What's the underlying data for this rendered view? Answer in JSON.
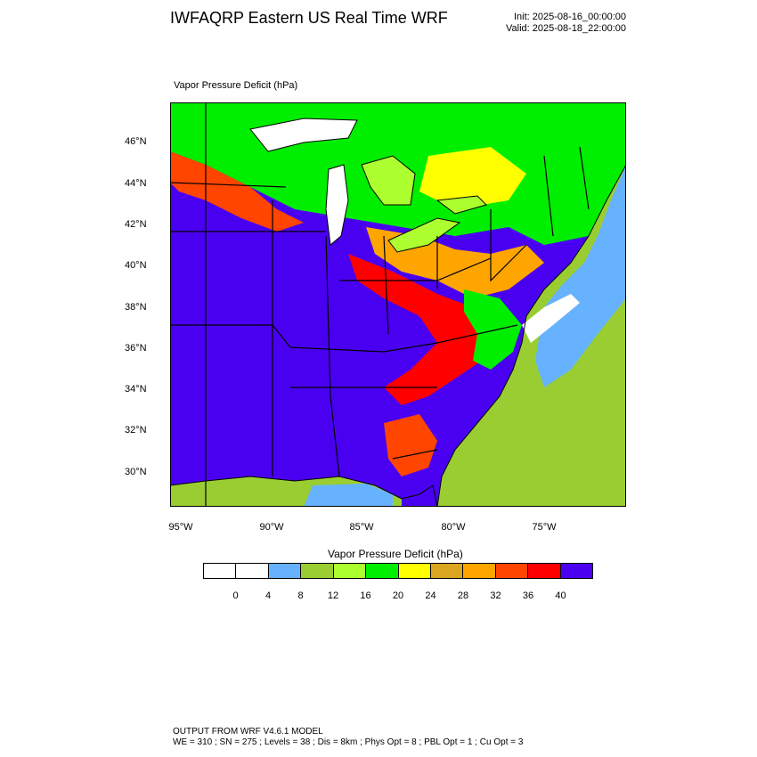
{
  "header": {
    "title": "IWFAQRP Eastern US Real Time WRF",
    "init": "Init: 2025-08-16_00:00:00",
    "valid": "Valid: 2025-08-18_22:00:00"
  },
  "map": {
    "field_title": "Vapor Pressure Deficit   (hPa)",
    "lat_labels": [
      "46°N",
      "44°N",
      "42°N",
      "40°N",
      "38°N",
      "36°N",
      "34°N",
      "32°N",
      "30°N"
    ],
    "lon_labels": [
      "95°W",
      "90°W",
      "85°W",
      "80°W",
      "75°W"
    ],
    "water_color": "#66b2ff",
    "land_base_color": "#4a00f0"
  },
  "colorbar": {
    "title": "Vapor Pressure Deficit  (hPa)",
    "colors": [
      "#ffffff",
      "#ffffff",
      "#66b2ff",
      "#9acd32",
      "#adff2f",
      "#00ee00",
      "#ffff00",
      "#daa520",
      "#ffa500",
      "#ff4500",
      "#ff0000",
      "#4b00f0"
    ],
    "labels": [
      "0",
      "4",
      "8",
      "12",
      "16",
      "20",
      "24",
      "28",
      "32",
      "36",
      "40"
    ]
  },
  "footer": {
    "line1": "OUTPUT FROM WRF V4.6.1 MODEL",
    "line2": "WE = 310 ; SN = 275 ; Levels = 38 ; Dis = 8km ; Phys Opt = 8 ; PBL Opt = 1 ; Cu Opt = 3"
  }
}
